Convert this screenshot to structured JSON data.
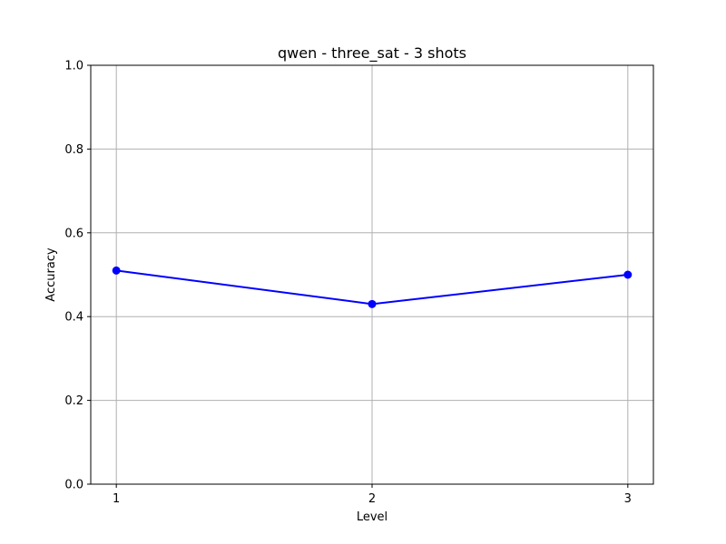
{
  "chart_data": {
    "type": "line",
    "title": "qwen - three_sat - 3 shots",
    "xlabel": "Level",
    "ylabel": "Accuracy",
    "x": [
      1,
      2,
      3
    ],
    "x_tick_labels": [
      "1",
      "2",
      "3"
    ],
    "xlim": [
      0.9,
      3.1
    ],
    "ylim": [
      0.0,
      1.0
    ],
    "y_ticks": [
      0.0,
      0.2,
      0.4,
      0.6,
      0.8,
      1.0
    ],
    "y_tick_labels": [
      "0.0",
      "0.2",
      "0.4",
      "0.6",
      "0.8",
      "1.0"
    ],
    "grid": true,
    "series": [
      {
        "values": [
          0.51,
          0.43,
          0.5
        ],
        "color": "#0000ff",
        "marker": "circle"
      }
    ]
  }
}
